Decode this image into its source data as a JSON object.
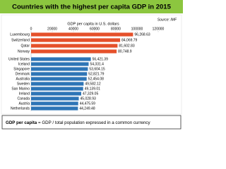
{
  "chart_data": {
    "type": "barh",
    "title": "Countries with the highest per capita GDP in 2015",
    "source": "Source: IMF",
    "xlabel": "GDP per capita in U.S. dollars",
    "categories": [
      "Luxembourg",
      "Switzerland",
      "Qatar",
      "Norway",
      "United States",
      "Iceland",
      "Singapore",
      "Denmark",
      "Australia",
      "Sweden",
      "San Marino",
      "Ireland",
      "Canada",
      "Austria",
      "Netherlands"
    ],
    "values": [
      96268.63,
      84069.79,
      81602.83,
      80748.9,
      56421.39,
      54331.4,
      53604.15,
      52821.79,
      52454.08,
      49582.12,
      49139.01,
      47329.05,
      45028.93,
      44475.59,
      44249.48
    ],
    "value_labels": [
      "96,268.63",
      "84,069.79",
      "81,602.83",
      "80,748.9",
      "56,421.39",
      "54,331.4",
      "53,604.15",
      "52,821.79",
      "52,454.08",
      "49,582.12",
      "49,139.01",
      "47,329.05",
      "45,028.93",
      "44,475.59",
      "44,249.48"
    ],
    "colors": [
      "#e5502a",
      "#e5502a",
      "#e5502a",
      "#e5502a",
      "#2e75b6",
      "#2e75b6",
      "#2e75b6",
      "#2e75b6",
      "#2e75b6",
      "#2e75b6",
      "#2e75b6",
      "#2e75b6",
      "#2e75b6",
      "#2e75b6",
      "#2e75b6"
    ],
    "xlim": [
      0,
      120000
    ],
    "xticks": [
      0,
      20000,
      40000,
      60000,
      80000,
      100000,
      120000
    ],
    "note_bold": "GDP per capita",
    "note": "= GDP / total population expressed in a common currency"
  }
}
